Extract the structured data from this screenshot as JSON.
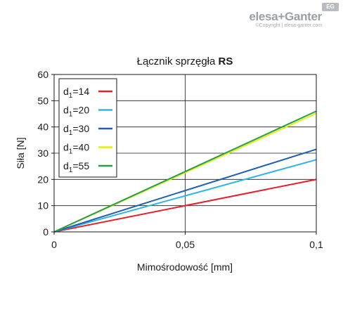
{
  "brand": {
    "name": "elesa+Ganter",
    "copyright": "©Copyright | elesa-ganter.com",
    "badge": "EG"
  },
  "chart_data": {
    "type": "line",
    "title_prefix": "Łącznik sprzęgła ",
    "title_bold": "RS",
    "xlabel": "Mimośrodowość [mm]",
    "ylabel": "Siła [N]",
    "xlim": [
      0,
      0.1
    ],
    "ylim": [
      0,
      60
    ],
    "x_ticks": [
      0,
      0.05,
      0.1
    ],
    "x_tick_labels": [
      "0",
      "0,05",
      "0,1"
    ],
    "y_ticks": [
      0,
      10,
      20,
      30,
      40,
      50,
      60
    ],
    "y_tick_labels": [
      "0",
      "10",
      "20",
      "30",
      "40",
      "50",
      "60"
    ],
    "grid": "major",
    "legend_position": "top-left",
    "series": [
      {
        "name_main": "d",
        "name_sub": "1",
        "name_rest": "=14",
        "color": "#e8202a",
        "x": [
          0,
          0.1
        ],
        "y": [
          0,
          20
        ]
      },
      {
        "name_main": "d",
        "name_sub": "1",
        "name_rest": "=20",
        "color": "#2cb5e8",
        "x": [
          0,
          0.1
        ],
        "y": [
          0,
          27.5
        ]
      },
      {
        "name_main": "d",
        "name_sub": "1",
        "name_rest": "=30",
        "color": "#1f5fb0",
        "x": [
          0,
          0.1
        ],
        "y": [
          0,
          31.5
        ]
      },
      {
        "name_main": "d",
        "name_sub": "1",
        "name_rest": "=40",
        "color": "#e6ec1a",
        "x": [
          0,
          0.1
        ],
        "y": [
          0,
          45.2
        ]
      },
      {
        "name_main": "d",
        "name_sub": "1",
        "name_rest": "=55",
        "color": "#25a045",
        "x": [
          0,
          0.1
        ],
        "y": [
          0,
          46
        ]
      }
    ]
  }
}
